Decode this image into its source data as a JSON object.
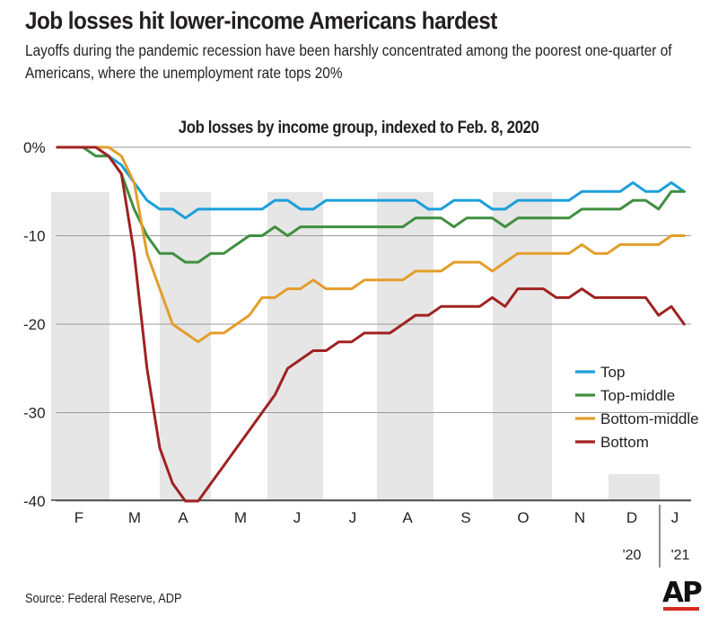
{
  "title": "Job losses hit lower-income Americans hardest",
  "subtitle": "Layoffs during the pandemic recession have been harshly concentrated among the poorest one-quarter of Americans, where the unemployment rate tops 20%",
  "source": "Source: Federal Reserve, ADP",
  "logo": "AP",
  "colors": {
    "top": "#1a9fd9",
    "top_middle": "#3f8f3f",
    "bottom_middle": "#e29e2b",
    "bottom": "#a02222",
    "band": "#e6e6e6",
    "grid": "#9a9a9a",
    "logo_accent": "#d52b1e"
  },
  "chart_data": {
    "type": "line",
    "title": "Job losses by income group, indexed to Feb. 8, 2020",
    "xlabel": "",
    "ylabel": "",
    "y_ticks": [
      "0%",
      "-10",
      "-20",
      "-30",
      "-40"
    ],
    "y_tick_values": [
      0,
      -10,
      -20,
      -30,
      -40
    ],
    "ylim": [
      -40,
      0
    ],
    "grid": "horizontal",
    "legend_position": "right",
    "x": [
      "2020-02-08",
      "2020-02-15",
      "2020-02-22",
      "2020-02-29",
      "2020-03-07",
      "2020-03-14",
      "2020-03-21",
      "2020-03-28",
      "2020-04-04",
      "2020-04-11",
      "2020-04-18",
      "2020-04-25",
      "2020-05-02",
      "2020-05-09",
      "2020-05-16",
      "2020-05-23",
      "2020-05-30",
      "2020-06-06",
      "2020-06-13",
      "2020-06-20",
      "2020-06-27",
      "2020-07-04",
      "2020-07-11",
      "2020-07-18",
      "2020-07-25",
      "2020-08-01",
      "2020-08-08",
      "2020-08-15",
      "2020-08-22",
      "2020-08-29",
      "2020-09-05",
      "2020-09-12",
      "2020-09-19",
      "2020-09-26",
      "2020-10-03",
      "2020-10-10",
      "2020-10-17",
      "2020-10-24",
      "2020-10-31",
      "2020-11-07",
      "2020-11-14",
      "2020-11-21",
      "2020-11-28",
      "2020-12-05",
      "2020-12-12",
      "2020-12-19",
      "2020-12-26",
      "2021-01-02",
      "2021-01-09",
      "2021-01-16"
    ],
    "month_labels": [
      "F",
      "M",
      "A",
      "M",
      "J",
      "J",
      "A",
      "S",
      "O",
      "N",
      "D",
      "J"
    ],
    "year_labels": [
      "'20",
      "'21"
    ],
    "series": [
      {
        "name": "Top",
        "color": "#1a9fd9",
        "values": [
          0,
          0,
          0,
          0,
          -1,
          -2,
          -4,
          -6,
          -7,
          -7,
          -8,
          -7,
          -7,
          -7,
          -7,
          -7,
          -7,
          -6,
          -6,
          -7,
          -7,
          -6,
          -6,
          -6,
          -6,
          -6,
          -6,
          -6,
          -6,
          -7,
          -7,
          -6,
          -6,
          -6,
          -7,
          -7,
          -6,
          -6,
          -6,
          -6,
          -6,
          -5,
          -5,
          -5,
          -5,
          -4,
          -5,
          -5,
          -4,
          -5
        ]
      },
      {
        "name": "Top-middle",
        "color": "#3f8f3f",
        "values": [
          0,
          0,
          0,
          -1,
          -1,
          -3,
          -7,
          -10,
          -12,
          -12,
          -13,
          -13,
          -12,
          -12,
          -11,
          -10,
          -10,
          -9,
          -10,
          -9,
          -9,
          -9,
          -9,
          -9,
          -9,
          -9,
          -9,
          -9,
          -8,
          -8,
          -8,
          -9,
          -8,
          -8,
          -8,
          -9,
          -8,
          -8,
          -8,
          -8,
          -8,
          -7,
          -7,
          -7,
          -7,
          -6,
          -6,
          -7,
          -5,
          -5
        ]
      },
      {
        "name": "Bottom-middle",
        "color": "#e29e2b",
        "values": [
          0,
          0,
          0,
          0,
          0,
          -1,
          -4,
          -12,
          -16,
          -20,
          -21,
          -22,
          -21,
          -21,
          -20,
          -19,
          -17,
          -17,
          -16,
          -16,
          -15,
          -16,
          -16,
          -16,
          -15,
          -15,
          -15,
          -15,
          -14,
          -14,
          -14,
          -13,
          -13,
          -13,
          -14,
          -13,
          -12,
          -12,
          -12,
          -12,
          -12,
          -11,
          -12,
          -12,
          -11,
          -11,
          -11,
          -11,
          -10,
          -10
        ]
      },
      {
        "name": "Bottom",
        "color": "#a02222",
        "values": [
          0,
          0,
          0,
          0,
          -1,
          -3,
          -12,
          -25,
          -34,
          -38,
          -40,
          -40,
          -38,
          -36,
          -34,
          -32,
          -30,
          -28,
          -25,
          -24,
          -23,
          -23,
          -22,
          -22,
          -21,
          -21,
          -21,
          -20,
          -19,
          -19,
          -18,
          -18,
          -18,
          -18,
          -17,
          -18,
          -16,
          -16,
          -16,
          -17,
          -17,
          -16,
          -17,
          -17,
          -17,
          -17,
          -17,
          -19,
          -18,
          -20
        ]
      }
    ]
  }
}
